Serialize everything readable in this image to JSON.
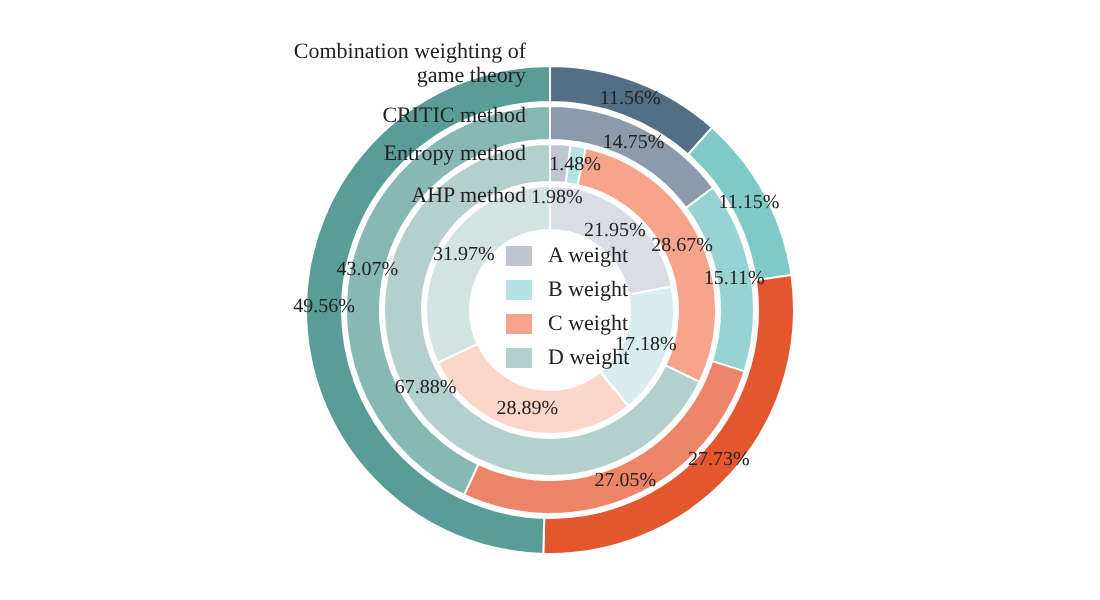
{
  "chart_data": {
    "type": "donut",
    "categories": [
      "A weight",
      "B weight",
      "C weight",
      "D weight"
    ],
    "legend": "center",
    "series": [
      {
        "name": "AHP method",
        "values": [
          21.95,
          17.18,
          28.89,
          31.97
        ],
        "colors": [
          "#dadee4",
          "#d8eeee",
          "#fbd6c9",
          "#d3e3e1"
        ],
        "value_labels": [
          "21.95%",
          "17.18%",
          "28.89%",
          "31.97%"
        ]
      },
      {
        "name": "Entropy method",
        "values": [
          1.98,
          1.48,
          28.67,
          67.88
        ],
        "colors": [
          "#c0c6d0",
          "#b5e2e2",
          "#f6a58c",
          "#b3d0cd"
        ],
        "value_labels": [
          "1.98%",
          "1.48%",
          "28.67%",
          "67.88%"
        ]
      },
      {
        "name": "CRITIC method",
        "values": [
          14.75,
          15.11,
          27.05,
          43.07
        ],
        "colors": [
          "#8b9bab",
          "#97d3d3",
          "#ee8467",
          "#88b8b3"
        ],
        "value_labels": [
          "14.75%",
          "15.11%",
          "27.05%",
          "43.07%"
        ]
      },
      {
        "name": "Combination weighting of game theory",
        "values": [
          11.56,
          11.15,
          27.73,
          49.56
        ],
        "colors": [
          "#546e85",
          "#7fcac6",
          "#e4572e",
          "#5a9d98"
        ],
        "value_labels": [
          "11.56%",
          "11.15%",
          "27.73%",
          "49.56%"
        ]
      }
    ]
  }
}
